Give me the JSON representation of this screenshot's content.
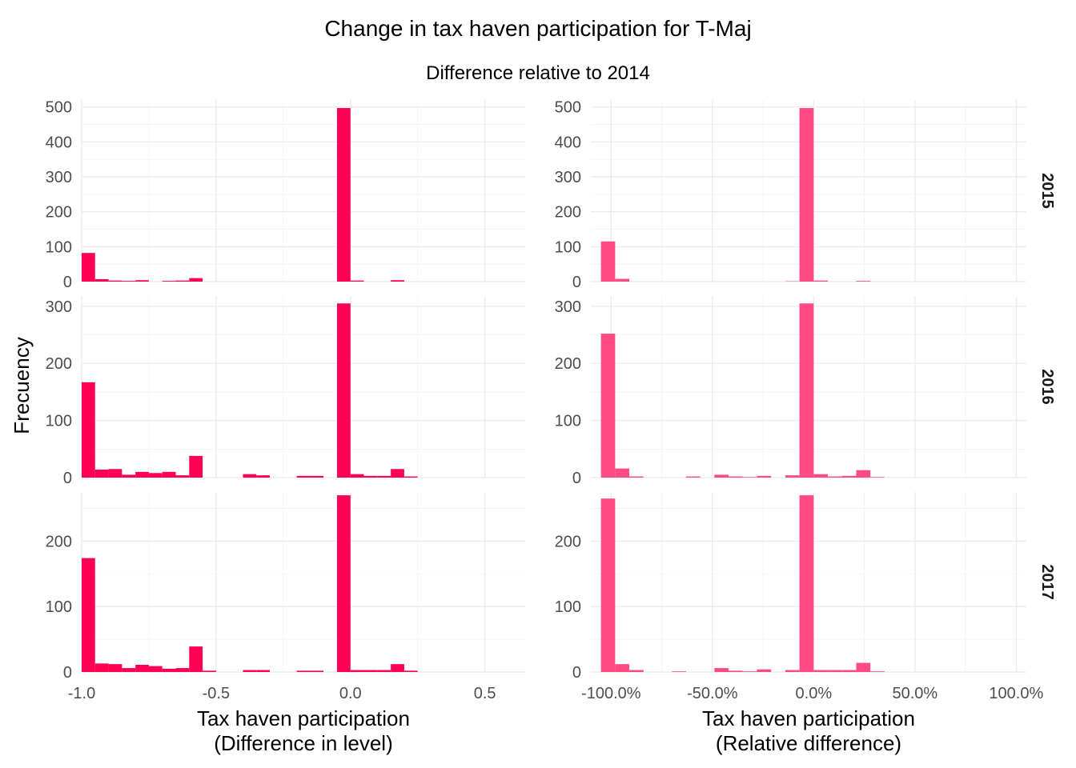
{
  "title": "Change in tax haven participation for T-Maj",
  "subtitle": "Difference relative to 2014",
  "y_axis_title": "Frecuency",
  "chart_data": {
    "type": "bar",
    "facet_rows": [
      "2015",
      "2016",
      "2017"
    ],
    "facet_columns": [
      {
        "xlabel": "Tax haven participation\n(Difference in level)",
        "xlim": [
          -1.0,
          0.65
        ],
        "xticks": [
          -1.0,
          -0.5,
          0.0,
          0.5
        ],
        "xtick_labels": [
          "-1.0",
          "-0.5",
          "0.0",
          "0.5"
        ],
        "color": "#ff0055",
        "bin_width": 0.05,
        "bin_centers": [
          -0.975,
          -0.925,
          -0.875,
          -0.825,
          -0.775,
          -0.725,
          -0.675,
          -0.625,
          -0.575,
          -0.525,
          -0.475,
          -0.425,
          -0.375,
          -0.325,
          -0.275,
          -0.225,
          -0.175,
          -0.125,
          -0.075,
          -0.025,
          0.025,
          0.075,
          0.125,
          0.175,
          0.225,
          0.275,
          0.325
        ]
      },
      {
        "xlabel": "Tax haven participation\n(Relative difference)",
        "xlim": [
          -110,
          105
        ],
        "xticks": [
          -100,
          -50,
          0,
          50,
          100
        ],
        "xtick_labels": [
          "-100.0%",
          "-50.0%",
          "0.0%",
          "50.0%",
          "100.0%"
        ],
        "color": "#ff4a85",
        "bin_width": 7,
        "bin_centers": [
          -108.5,
          -101.5,
          -94.5,
          -87.5,
          -80.5,
          -73.5,
          -66.5,
          -59.5,
          -52.5,
          -45.5,
          -38.5,
          -31.5,
          -24.5,
          -17.5,
          -10.5,
          -3.5,
          3.5,
          10.5,
          17.5,
          24.5,
          31.5,
          38.5
        ]
      }
    ],
    "panels": [
      {
        "row": "2015",
        "col": 0,
        "ylim": [
          0,
          520
        ],
        "yticks": [
          0,
          100,
          200,
          300,
          400,
          500
        ],
        "counts": [
          82,
          7,
          3,
          2,
          4,
          0,
          2,
          3,
          10,
          0,
          0,
          0,
          0,
          0,
          0,
          0,
          0,
          0,
          0,
          497,
          3,
          0,
          0,
          4,
          0,
          0,
          0
        ]
      },
      {
        "row": "2015",
        "col": 1,
        "ylim": [
          0,
          520
        ],
        "yticks": [
          0,
          100,
          200,
          300,
          400,
          500
        ],
        "counts": [
          0,
          115,
          8,
          0,
          0,
          0,
          0,
          0,
          0,
          0,
          0,
          0,
          0,
          0,
          1,
          497,
          3,
          0,
          0,
          2,
          0,
          0
        ]
      },
      {
        "row": "2016",
        "col": 0,
        "ylim": [
          0,
          318
        ],
        "yticks": [
          0,
          100,
          200,
          300
        ],
        "counts": [
          167,
          14,
          15,
          5,
          10,
          8,
          10,
          4,
          38,
          0,
          0,
          0,
          6,
          4,
          0,
          0,
          3,
          3,
          0,
          305,
          6,
          3,
          3,
          15,
          2,
          0,
          0
        ]
      },
      {
        "row": "2016",
        "col": 1,
        "ylim": [
          0,
          318
        ],
        "yticks": [
          0,
          100,
          200,
          300
        ],
        "counts": [
          0,
          252,
          16,
          2,
          0,
          0,
          0,
          2,
          0,
          5,
          2,
          1,
          3,
          0,
          4,
          305,
          6,
          2,
          3,
          13,
          1,
          0
        ]
      },
      {
        "row": "2017",
        "col": 0,
        "ylim": [
          0,
          275
        ],
        "yticks": [
          0,
          100,
          200
        ],
        "counts": [
          174,
          13,
          12,
          6,
          11,
          9,
          5,
          6,
          39,
          2,
          0,
          0,
          3,
          3,
          0,
          0,
          2,
          2,
          0,
          270,
          3,
          3,
          3,
          12,
          2,
          0,
          0
        ]
      },
      {
        "row": "2017",
        "col": 1,
        "ylim": [
          0,
          275
        ],
        "yticks": [
          0,
          100,
          200
        ],
        "counts": [
          0,
          265,
          12,
          3,
          0,
          0,
          1,
          0,
          0,
          6,
          2,
          1,
          4,
          0,
          3,
          270,
          3,
          3,
          3,
          14,
          1,
          0
        ]
      }
    ]
  }
}
